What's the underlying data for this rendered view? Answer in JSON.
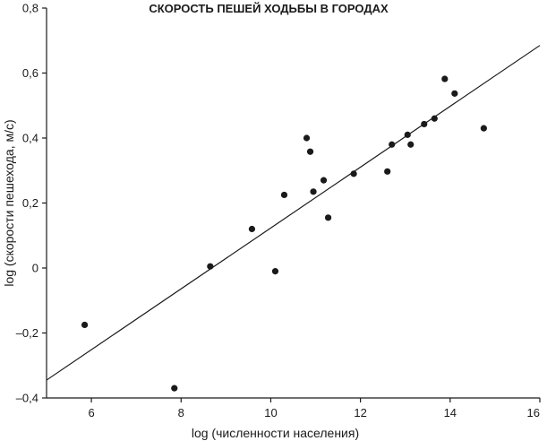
{
  "chart_data": {
    "type": "scatter",
    "title": "СКОРОСТЬ ПЕШЕЙ ХОДЬБЫ В ГОРОДАХ",
    "xlabel": "log (численности населения)",
    "ylabel": "log (скорости пешехода, м/с)",
    "xlim": [
      5,
      16
    ],
    "ylim": [
      -0.4,
      0.8
    ],
    "x_ticks": [
      6,
      8,
      10,
      12,
      14,
      16
    ],
    "x_tick_labels": [
      "6",
      "8",
      "10",
      "12",
      "14",
      "16"
    ],
    "y_ticks": [
      -0.4,
      -0.2,
      0,
      0.2,
      0.4,
      0.6,
      0.8
    ],
    "y_tick_labels": [
      "–0,4",
      "–0,2",
      "0",
      "0,2",
      "0,4",
      "0,6",
      "0,8"
    ],
    "grid": false,
    "points": [
      {
        "x": 5.85,
        "y": -0.175
      },
      {
        "x": 7.85,
        "y": -0.37
      },
      {
        "x": 8.65,
        "y": 0.005
      },
      {
        "x": 9.58,
        "y": 0.12
      },
      {
        "x": 10.1,
        "y": -0.01
      },
      {
        "x": 10.3,
        "y": 0.225
      },
      {
        "x": 10.8,
        "y": 0.4
      },
      {
        "x": 10.88,
        "y": 0.358
      },
      {
        "x": 10.95,
        "y": 0.235
      },
      {
        "x": 11.18,
        "y": 0.27
      },
      {
        "x": 11.28,
        "y": 0.155
      },
      {
        "x": 11.85,
        "y": 0.29
      },
      {
        "x": 12.6,
        "y": 0.297
      },
      {
        "x": 12.7,
        "y": 0.38
      },
      {
        "x": 13.05,
        "y": 0.41
      },
      {
        "x": 13.12,
        "y": 0.38
      },
      {
        "x": 13.42,
        "y": 0.443
      },
      {
        "x": 13.65,
        "y": 0.46
      },
      {
        "x": 13.88,
        "y": 0.582
      },
      {
        "x": 14.1,
        "y": 0.537
      },
      {
        "x": 14.75,
        "y": 0.43
      }
    ],
    "trendline": [
      {
        "x": 5,
        "y": -0.345
      },
      {
        "x": 16,
        "y": 0.685
      }
    ],
    "colors": {
      "marks": "#1a1a1a",
      "line": "#1a1a1a"
    }
  }
}
